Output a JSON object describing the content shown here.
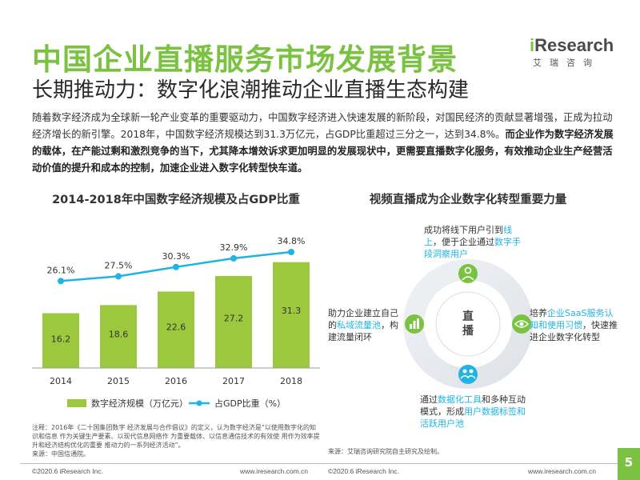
{
  "header": {
    "title": "中国企业直播服务市场发展背景",
    "subtitle": "长期推动力：数字化浪潮推动企业直播生态构建"
  },
  "logo": {
    "brand_i": "i",
    "brand_rest": "Research",
    "subtext": "艾瑞咨询"
  },
  "intro": {
    "normal": "随着数字经济成为全球新一轮产业变革的重要驱动力，中国数字经济进入快速发展的新阶段，对国民经济的贡献显著增强，正成为拉动经济增长的新引擎。2018年，中国数字经济规模达到31.3万亿元，占GDP比重超过三分之一，达到34.8%。",
    "bold": "而企业作为数字经济发展的载体，在产能过剩和激烈竞争的当下，尤其降本增效诉求更加明显的发展现状中，更需要直播数字化服务，有效推动企业生产经营活动价值的提升和成本的控制，加速企业进入数字化转型快车道。"
  },
  "left_title": "2014-2018年中国数字经济规模及占GDP比重",
  "right_title": "视频直播成为企业数字化转型重要力量",
  "chart_data": {
    "type": "bar",
    "categories": [
      "2014",
      "2015",
      "2016",
      "2017",
      "2018"
    ],
    "series": [
      {
        "name": "数字经济规模（万亿元）",
        "type": "bar",
        "values": [
          16.2,
          18.6,
          22.6,
          27.2,
          31.3
        ],
        "labels": [
          "16.2",
          "18.6",
          "22.6",
          "27.2",
          "31.3"
        ],
        "color": "#9bc83c"
      },
      {
        "name": "占GDP比重（%）",
        "type": "line",
        "values": [
          26.1,
          27.5,
          30.3,
          32.9,
          34.8
        ],
        "labels": [
          "26.1%",
          "27.5%",
          "30.3%",
          "32.9%",
          "34.8%"
        ],
        "color": "#1fb4e1"
      }
    ]
  },
  "note": "注释：2016年《二十国集团数字 经济发展与合作倡议》的定义，认为数字经济是“以使用数字化的知识和信息 作为关键生产要素、以现代信息网络作 为重要载体、以信息通信技术的有效使 用作为效率提升和经济结构优化的重要 推动力的一系列经济活动”。",
  "note_source": "来源：中国信通院。",
  "right_source": "来源：艾瑞咨询研究院自主研究及绘制。",
  "ring": {
    "center_label": "直播",
    "top": {
      "p1": "成功将线下用户引到",
      "h1": "线上",
      "p2": "，便于企业通过",
      "h2": "数字手段洞察用户"
    },
    "right": {
      "p1": "培养",
      "h1": "企业SaaS服务认知和使用习惯",
      "p2": "，快速推进企业数字化转型"
    },
    "bottom": {
      "p1": "通过",
      "h1": "数据化工具",
      "p2": "和多种互动模式，形成",
      "h2": "用户数据标签和活跃用户池"
    },
    "left": {
      "p1": "助力企业建立自己的",
      "h1": "私域流量池",
      "p2": "，构建流量闭环"
    }
  },
  "footer": {
    "copyright": "©2020.6 iResearch Inc.",
    "url": "www.iresearch.com.cn",
    "page": "5"
  },
  "colors": {
    "accent_green": "#7cc242",
    "bar_green": "#9bc83c",
    "line_blue": "#1fb4e1"
  },
  "icons": [
    "user-icon",
    "bar-chart-icon",
    "eye-icon",
    "users-icon"
  ]
}
